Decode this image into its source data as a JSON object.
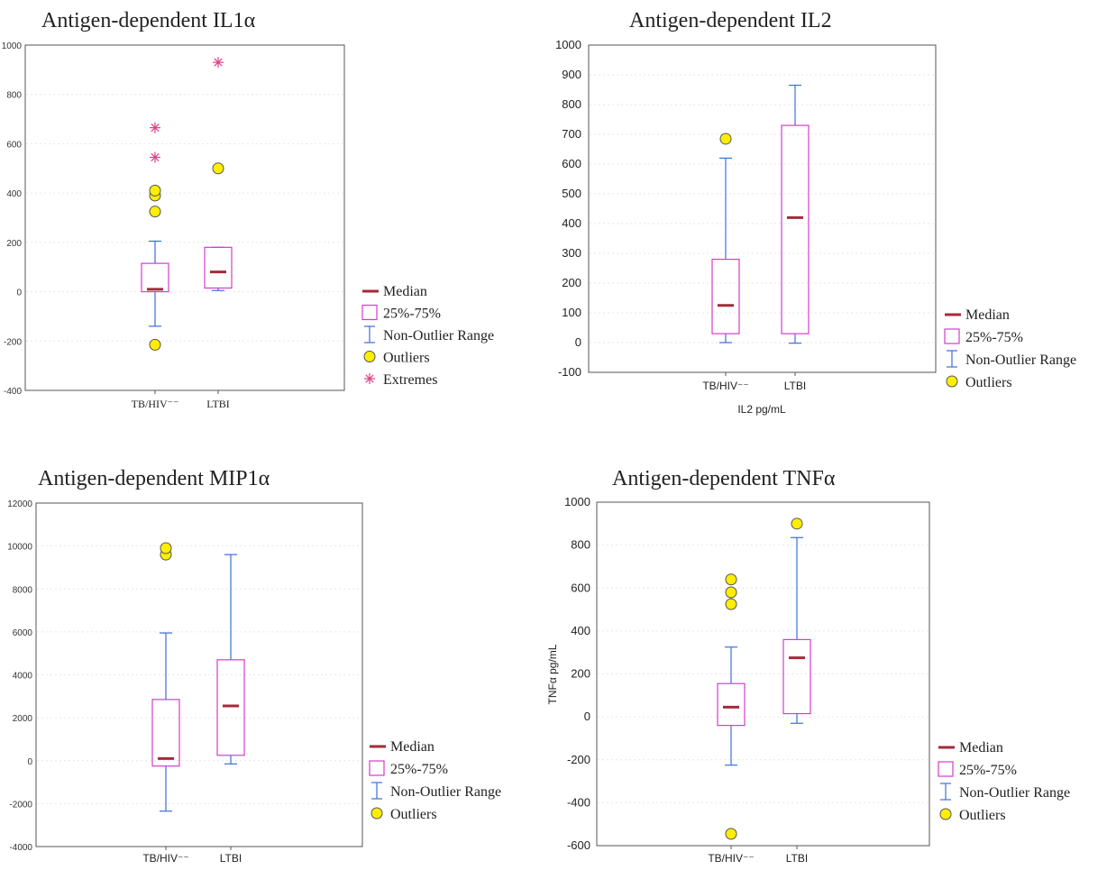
{
  "legend_labels": {
    "median": "Median",
    "box": "25%-75%",
    "range": "Non-Outlier Range",
    "outliers": "Outliers",
    "extremes": "Extremes"
  },
  "colors": {
    "median": "#a52a3a",
    "box": "#d63cc8",
    "whisker": "#3a6fd8",
    "outlier_fill": "#ffee00",
    "outlier_stroke": "#555555",
    "extreme": "#e0408a"
  },
  "chart_data": [
    {
      "type": "box",
      "title": "Antigen-dependent IL1α",
      "xlabel": "",
      "ylabel": "",
      "ylim": [
        -400,
        1000
      ],
      "yticks": [
        -400,
        -200,
        0,
        200,
        400,
        600,
        800,
        1000
      ],
      "categories": [
        "TB/HIV⁻⁻",
        "LTBI"
      ],
      "boxes": [
        {
          "category": "TB/HIV⁻⁻",
          "whisker_low": -140,
          "q1": 0,
          "median": 10,
          "q3": 115,
          "whisker_high": 205,
          "outliers": [
            -215,
            325,
            390,
            410
          ],
          "extremes": [
            545,
            665
          ]
        },
        {
          "category": "LTBI",
          "whisker_low": 5,
          "q1": 15,
          "median": 80,
          "q3": 180,
          "whisker_high": 180,
          "outliers": [
            500
          ],
          "extremes": [
            930
          ]
        }
      ],
      "legend": [
        "median",
        "box",
        "range",
        "outliers",
        "extremes"
      ]
    },
    {
      "type": "box",
      "title": "Antigen-dependent IL2",
      "xlabel": "IL2 pg/mL",
      "ylabel": "",
      "ylim": [
        -100,
        1000
      ],
      "yticks": [
        -100,
        0,
        100,
        200,
        300,
        400,
        500,
        600,
        700,
        800,
        900,
        1000
      ],
      "categories": [
        "TB/HIV⁻⁻",
        "LTBI"
      ],
      "boxes": [
        {
          "category": "TB/HIV⁻⁻",
          "whisker_low": 0,
          "q1": 30,
          "median": 125,
          "q3": 280,
          "whisker_high": 620,
          "outliers": [
            685
          ],
          "extremes": []
        },
        {
          "category": "LTBI",
          "whisker_low": -2,
          "q1": 30,
          "median": 420,
          "q3": 730,
          "whisker_high": 865,
          "outliers": [],
          "extremes": []
        }
      ],
      "legend": [
        "median",
        "box",
        "range",
        "outliers"
      ]
    },
    {
      "type": "box",
      "title": "Antigen-dependent MIP1α",
      "xlabel": "",
      "ylabel": "",
      "ylim": [
        -4000,
        12000
      ],
      "yticks": [
        -4000,
        -2000,
        0,
        2000,
        4000,
        6000,
        8000,
        10000,
        12000
      ],
      "categories": [
        "TB/HIV⁻⁻",
        "LTBI"
      ],
      "boxes": [
        {
          "category": "TB/HIV⁻⁻",
          "whisker_low": -2350,
          "q1": -250,
          "median": 100,
          "q3": 2850,
          "whisker_high": 5950,
          "outliers": [
            9600,
            9900
          ],
          "extremes": []
        },
        {
          "category": "LTBI",
          "whisker_low": -150,
          "q1": 250,
          "median": 2550,
          "q3": 4700,
          "whisker_high": 9600,
          "outliers": [],
          "extremes": []
        }
      ],
      "legend": [
        "median",
        "box",
        "range",
        "outliers"
      ]
    },
    {
      "type": "box",
      "title": "Antigen-dependent TNFα",
      "xlabel": "",
      "ylabel": "TNFα pg/mL",
      "ylim": [
        -600,
        1000
      ],
      "yticks": [
        -600,
        -400,
        -200,
        0,
        200,
        400,
        600,
        800,
        1000
      ],
      "categories": [
        "TB/HIV⁻⁻",
        "LTBI"
      ],
      "boxes": [
        {
          "category": "TB/HIV⁻⁻",
          "whisker_low": -225,
          "q1": -40,
          "median": 45,
          "q3": 155,
          "whisker_high": 325,
          "outliers": [
            -545,
            525,
            580,
            640
          ],
          "extremes": []
        },
        {
          "category": "LTBI",
          "whisker_low": -30,
          "q1": 15,
          "median": 275,
          "q3": 360,
          "whisker_high": 835,
          "outliers": [
            900
          ],
          "extremes": []
        }
      ],
      "legend": [
        "median",
        "box",
        "range",
        "outliers"
      ]
    }
  ]
}
